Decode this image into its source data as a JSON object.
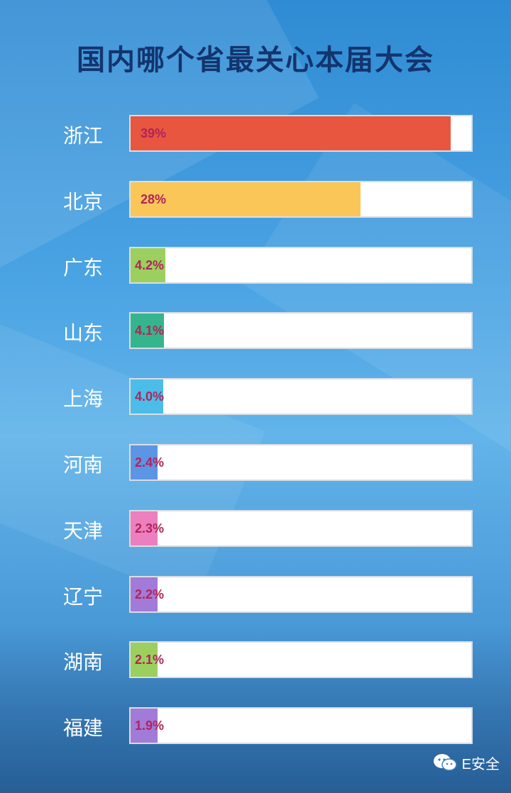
{
  "title": "国内哪个省最关心本届大会",
  "watermark": "E安全",
  "chart_data": {
    "type": "bar",
    "orientation": "horizontal",
    "title": "国内哪个省最关心本届大会",
    "xlim": [
      0,
      41.5
    ],
    "categories": [
      "浙江",
      "北京",
      "广东",
      "山东",
      "上海",
      "河南",
      "天津",
      "辽宁",
      "湖南",
      "福建"
    ],
    "values": [
      39,
      28,
      4.2,
      4.1,
      4.0,
      2.4,
      2.3,
      2.2,
      2.1,
      1.9
    ],
    "value_labels": [
      "39%",
      "28%",
      "4.2%",
      "4.1%",
      "4.0%",
      "2.4%",
      "2.3%",
      "2.2%",
      "2.1%",
      "1.9%"
    ],
    "colors": [
      "#e8563f",
      "#fbc658",
      "#9bd05f",
      "#35b58e",
      "#4cbde9",
      "#5b95e4",
      "#ec7fbe",
      "#a27bd8",
      "#9bd05f",
      "#a27bd8"
    ]
  }
}
